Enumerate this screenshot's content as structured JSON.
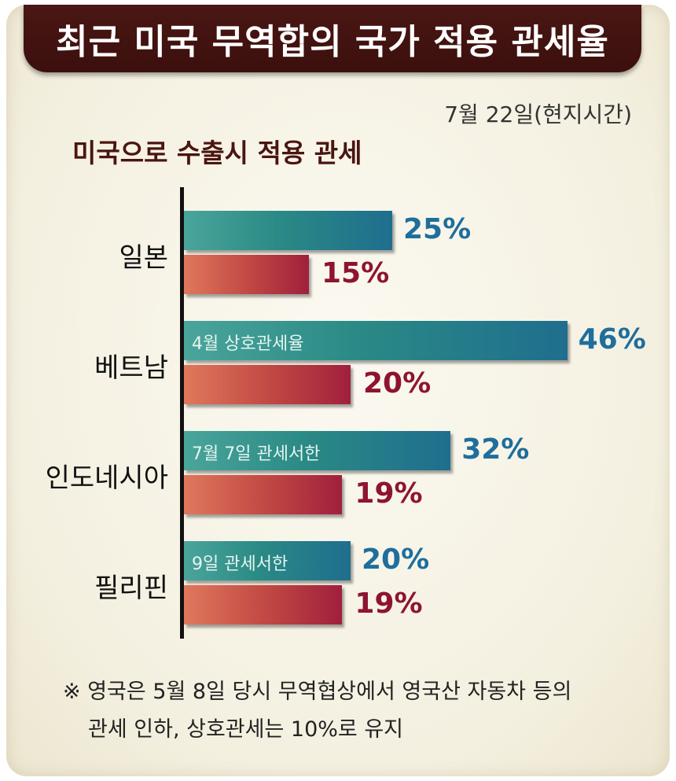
{
  "header": {
    "title": "최근 미국 무역합의 국가 적용 관세율",
    "date": "7월  22일(현지시간)",
    "subtitle": "미국으로 수출시 적용 관세"
  },
  "colors": {
    "banner": "#3b0f0d",
    "bar_us": "#2a8a85",
    "bar_current": "#c24a44",
    "value_us": "#1f6e9c",
    "value_current": "#8e1432"
  },
  "chart_data": {
    "type": "bar",
    "orientation": "horizontal",
    "categories": [
      "일본",
      "베트남",
      "인도네시아",
      "필리핀"
    ],
    "series": [
      {
        "values": [
          25,
          46,
          32,
          20
        ],
        "value_labels": [
          "25%",
          "46%",
          "32%",
          "20%"
        ],
        "bar_labels": [
          "",
          "4월 상호관세율",
          "7월 7일 관세서한",
          "9일 관세서한"
        ]
      },
      {
        "values": [
          15,
          20,
          19,
          19
        ],
        "value_labels": [
          "15%",
          "20%",
          "19%",
          "19%"
        ]
      }
    ],
    "legend": "none",
    "grid": false
  },
  "footnote": {
    "line1": "※ 영국은 5월 8일 당시 무역협상에서 영국산 자동차 등의",
    "line2": "관세 인하,  상호관세는 10%로 유지"
  }
}
